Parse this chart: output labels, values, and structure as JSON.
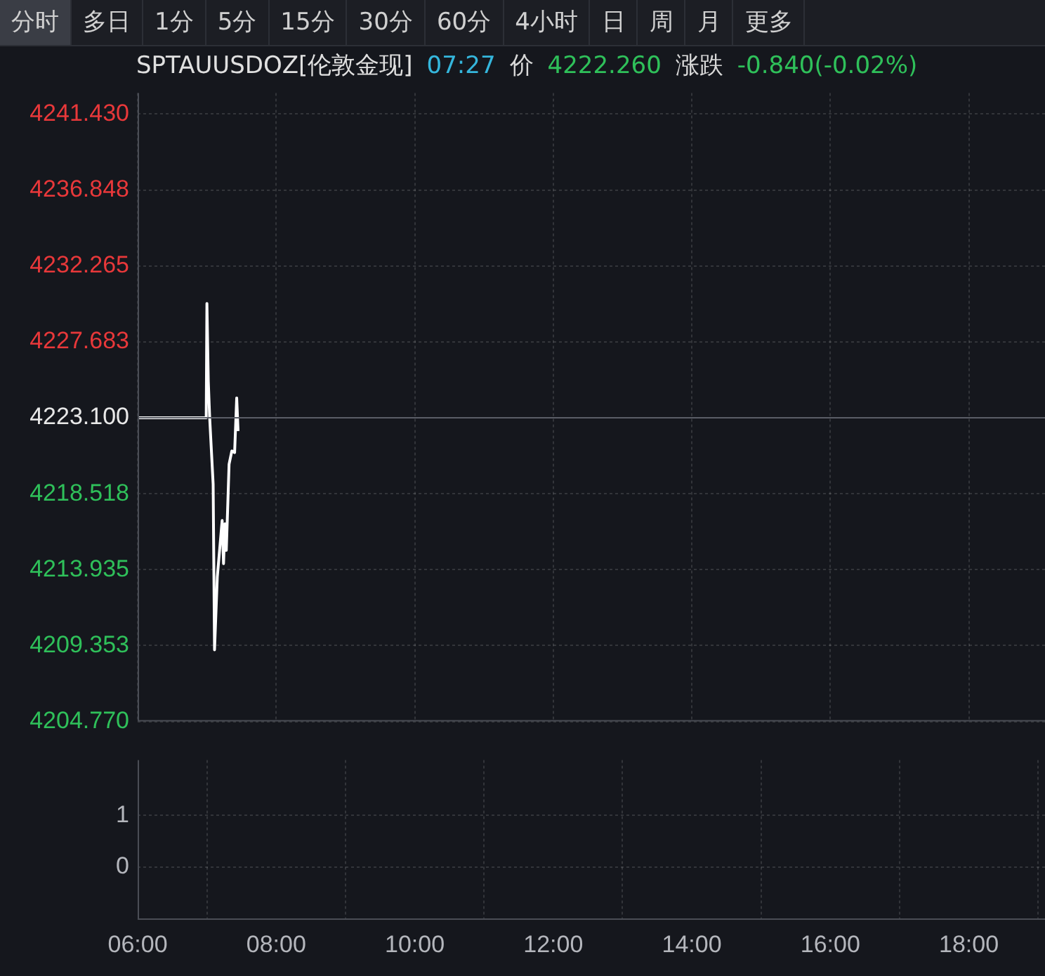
{
  "chart_data": [
    {
      "type": "line",
      "title": "SPTAUUSDOZ[伦敦金现]",
      "annotations": [
        "分时",
        "多日",
        "1分",
        "5分",
        "15分",
        "30分",
        "60分",
        "4小时",
        "日",
        "周",
        "月",
        "更多",
        "07:27",
        "价",
        "4222.260",
        "涨跌",
        "-0.840(-0.02%)"
      ],
      "x": [
        6.0,
        6.99,
        7.0,
        7.02,
        7.04,
        7.09,
        7.11,
        7.15,
        7.22,
        7.24,
        7.26,
        7.28,
        7.32,
        7.36,
        7.4,
        7.43,
        7.45
      ],
      "series": [
        {
          "color": "#ffffff",
          "values": [
            4223.1,
            4223.1,
            4230.0,
            4225.3,
            4223.1,
            4219.1,
            4209.1,
            4213.5,
            4216.9,
            4214.3,
            4216.7,
            4215.1,
            4220.3,
            4221.1,
            4221.0,
            4224.3,
            4222.3
          ]
        }
      ],
      "xlim": [
        6,
        19.1
      ],
      "xticks": [
        6,
        8,
        10,
        12,
        14,
        16,
        18
      ],
      "ylim": [
        4204.77,
        4242.7
      ],
      "yticks": [
        {
          "value": 4241.43,
          "label": "4241.430"
        },
        {
          "value": 4236.848,
          "label": "4236.848"
        },
        {
          "value": 4232.265,
          "label": "4232.265"
        },
        {
          "value": 4227.683,
          "label": "4227.683"
        },
        {
          "value": 4223.1,
          "label": "4223.100"
        },
        {
          "value": 4218.518,
          "label": "4218.518"
        },
        {
          "value": 4213.935,
          "label": "4213.935"
        },
        {
          "value": 4209.353,
          "label": "4209.353"
        },
        {
          "value": 4204.77,
          "label": "4204.770"
        }
      ],
      "ref_lines": [
        {
          "axis": "y",
          "value": 4223.1,
          "color": "#5a5d66"
        }
      ],
      "grid": true,
      "tick_labels": "y",
      "marker": "none",
      "line_style": "solid"
    },
    {
      "type": "bar",
      "xlim": [
        6,
        19.1
      ],
      "xticks": [
        {
          "value": 6,
          "label": "06:00"
        },
        {
          "value": 8,
          "label": "08:00"
        },
        {
          "value": 10,
          "label": "10:00"
        },
        {
          "value": 12,
          "label": "12:00"
        },
        {
          "value": 14,
          "label": "14:00"
        },
        {
          "value": 16,
          "label": "16:00"
        },
        {
          "value": 18,
          "label": "18:00"
        }
      ],
      "ylim": [
        -1.02,
        2.07
      ],
      "yticks": [
        0,
        1
      ],
      "grid": true
    }
  ]
}
